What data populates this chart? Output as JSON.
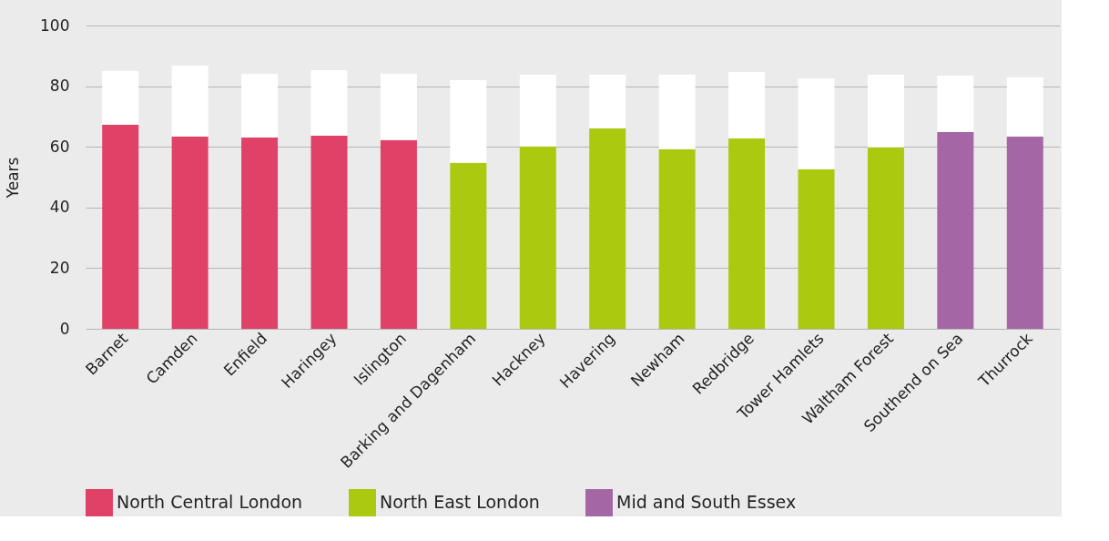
{
  "chart_data": {
    "type": "bar",
    "ylabel": "Years",
    "stacked": true,
    "categories": [
      "Barnet",
      "Camden",
      "Enfield",
      "Haringey",
      "Islington",
      "Barking and Dagenham",
      "Hackney",
      "Havering",
      "Newham",
      "Redbridge",
      "Tower Hamlets",
      "Waltham Forest",
      "Southend on Sea",
      "Thurrock"
    ],
    "series": [
      {
        "name": "North Central London",
        "color": "#e04166",
        "values": [
          67.3,
          63.4,
          63.1,
          63.7,
          62.2,
          null,
          null,
          null,
          null,
          null,
          null,
          null,
          null,
          null
        ]
      },
      {
        "name": "North East London",
        "color": "#abc90f",
        "values": [
          null,
          null,
          null,
          null,
          null,
          54.7,
          60.1,
          66.1,
          59.2,
          62.8,
          52.6,
          59.8,
          null,
          null
        ]
      },
      {
        "name": "Mid and South Essex",
        "color": "#a566a5",
        "values": [
          null,
          null,
          null,
          null,
          null,
          null,
          null,
          null,
          null,
          null,
          null,
          null,
          64.9,
          63.4
        ]
      },
      {
        "color": "#ffffff",
        "values": [
          17.7,
          23.4,
          21.0,
          21.6,
          21.9,
          27.3,
          23.7,
          17.7,
          24.6,
          21.9,
          30.0,
          24.0,
          18.6,
          19.5
        ]
      }
    ],
    "ylim": [
      0,
      100
    ],
    "yticks": [
      0,
      20,
      40,
      60,
      80,
      100
    ],
    "grid": "y",
    "legend": "bottom"
  }
}
